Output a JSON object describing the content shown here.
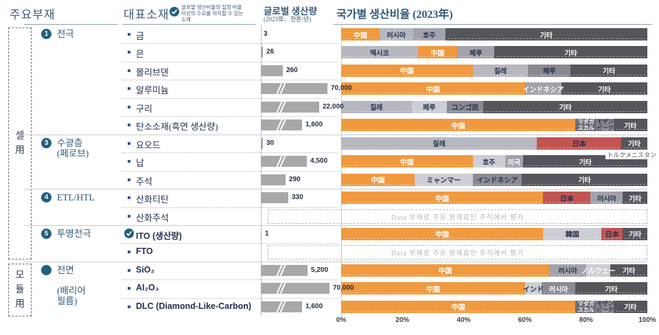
{
  "header": {
    "col1": "주요부재",
    "col2": "대표소재",
    "col2_note": "글로벌 생산비율의 일정 비율\n이상의 수요를 차지할 수 있는\n소재",
    "col3_line1": "글로벌 생산량",
    "col3_line2": "(2023年、천톤/년)",
    "col4": "국가별 생산비율 (2023年)"
  },
  "side_labels": [
    {
      "name": "cell-use",
      "chars": [
        "셀",
        "用"
      ]
    },
    {
      "name": "module-use",
      "chars": [
        "모",
        "듈",
        "用"
      ]
    }
  ],
  "groups": [
    {
      "num": "1",
      "lines": [
        "전극"
      ],
      "start_row": 0
    },
    {
      "num": "3",
      "lines": [
        "수광층",
        "(페로브)"
      ],
      "start_row": 6
    },
    {
      "num": "4",
      "lines": [
        "ETL/HTL"
      ],
      "start_row": 9
    },
    {
      "num": "5",
      "lines": [
        "투명전극"
      ],
      "start_row": 11
    },
    {
      "num": "",
      "lines": [
        "전면",
        " ",
        "(배리어",
        "필름)"
      ],
      "start_row": 13
    }
  ],
  "annotation": "トルクメニスタン",
  "colors": {
    "palette": {
      "cn": "#F0993E",
      "lg": "#B7B7C0",
      "xlg": "#CDCDD4",
      "mg": "#A2A2AB",
      "mg2": "#8A8A92",
      "dkm": "#6E6E76",
      "dk": "#55555C",
      "red": "#C05551"
    },
    "text": {
      "light": "#FFFFFF",
      "dark": "#26334D"
    },
    "bar_gray": "#A8A8A8",
    "accent_navy": "#215F80"
  },
  "chart_data": {
    "type": "bar",
    "stacked": true,
    "unit": "percent of global production by country",
    "x_axis_ticks": [
      "0%",
      "20%",
      "40%",
      "60%",
      "80%",
      "100%"
    ],
    "xlim": [
      0,
      100
    ],
    "no_data_text": "Data 부재로 주요 원재료인 주석에서 평가",
    "rows": [
      {
        "material": "금",
        "production": "3",
        "bar": 0,
        "brk": false,
        "segments": [
          {
            "label": "中国",
            "pct": 12.5,
            "bg": "cn",
            "fg": "light"
          },
          {
            "label": "러시아",
            "pct": 11,
            "bg": "lg",
            "fg": "dark"
          },
          {
            "label": "호주",
            "pct": 10.5,
            "bg": "mg",
            "fg": "dark"
          },
          {
            "label": "기타",
            "pct": 66,
            "bg": "dk",
            "fg": "light"
          }
        ]
      },
      {
        "material": "은",
        "production": "26",
        "bar": 3,
        "brk": false,
        "segments": [
          {
            "label": "멕시코",
            "pct": 25,
            "bg": "lg",
            "fg": "dark"
          },
          {
            "label": "中国",
            "pct": 13,
            "bg": "cn",
            "fg": "light"
          },
          {
            "label": "페루",
            "pct": 12,
            "bg": "mg",
            "fg": "dark"
          },
          {
            "label": "기타",
            "pct": 50,
            "bg": "dk",
            "fg": "light"
          }
        ]
      },
      {
        "material": "몰리브덴",
        "production": "260",
        "bar": 32,
        "brk": false,
        "segments": [
          {
            "label": "中国",
            "pct": 43,
            "bg": "cn",
            "fg": "light"
          },
          {
            "label": "칠레",
            "pct": 18,
            "bg": "lg",
            "fg": "dark"
          },
          {
            "label": "페루",
            "pct": 14,
            "bg": "mg2",
            "fg": "dark"
          },
          {
            "label": "기타",
            "pct": 25,
            "bg": "dk",
            "fg": "light"
          }
        ]
      },
      {
        "material": "알루미늄",
        "production": "70,000",
        "bar": 97,
        "brk": true,
        "segments": [
          {
            "label": "中国",
            "pct": 60,
            "bg": "cn",
            "fg": "light"
          },
          {
            "label": "インドネシア",
            "pct": 12,
            "bg": "mg",
            "fg": "light"
          },
          {
            "label": "기타",
            "pct": 28,
            "bg": "dk",
            "fg": "light"
          }
        ]
      },
      {
        "material": "구리",
        "production": "22,000",
        "bar": 85,
        "brk": true,
        "segments": [
          {
            "label": "칠레",
            "pct": 23,
            "bg": "lg",
            "fg": "dark"
          },
          {
            "label": "페루",
            "pct": 11.5,
            "bg": "xlg",
            "fg": "dark"
          },
          {
            "label": "コンゴ民",
            "pct": 12,
            "bg": "mg2",
            "fg": "dark"
          },
          {
            "label": "기타",
            "pct": 53.5,
            "bg": "dk",
            "fg": "light"
          }
        ]
      },
      {
        "material": "탄소소재(흑연 생산량)",
        "production": "1,600",
        "bar": 60,
        "brk": true,
        "segments": [
          {
            "label": "中国",
            "pct": 76.5,
            "bg": "cn",
            "fg": "light"
          },
          {
            "label": "マダガ\nスカル",
            "pct": 7,
            "bg": "dkm",
            "fg": "light",
            "size": 8
          },
          {
            "label": "モザン\nビーク",
            "pct": 5.5,
            "bg": "mg2",
            "fg": "dark",
            "size": 8
          },
          {
            "label": "기타",
            "pct": 11,
            "bg": "dk",
            "fg": "light"
          }
        ]
      },
      {
        "material": "요오드",
        "production": "30",
        "bar": 3,
        "brk": false,
        "segments": [
          {
            "label": "칠레",
            "pct": 64,
            "bg": "lg",
            "fg": "dark"
          },
          {
            "label": "日本",
            "pct": 27.5,
            "bg": "red",
            "fg": "dark"
          },
          {
            "label": "기타",
            "pct": 8.5,
            "bg": "dk",
            "fg": "light"
          }
        ]
      },
      {
        "material": "납",
        "production": "4,500",
        "bar": 67,
        "brk": true,
        "segments": [
          {
            "label": "中国",
            "pct": 43,
            "bg": "cn",
            "fg": "light"
          },
          {
            "label": "호주",
            "pct": 10.5,
            "bg": "xlg",
            "fg": "dark"
          },
          {
            "label": "미국",
            "pct": 6,
            "bg": "mg",
            "fg": "light"
          },
          {
            "label": "기타",
            "pct": 40.5,
            "bg": "dk",
            "fg": "light"
          }
        ]
      },
      {
        "material": "주석",
        "production": "290",
        "bar": 36,
        "brk": false,
        "segments": [
          {
            "label": "中国",
            "pct": 24,
            "bg": "cn",
            "fg": "light"
          },
          {
            "label": "ミャンマー",
            "pct": 19,
            "bg": "xlg",
            "fg": "dark"
          },
          {
            "label": "インドネシア",
            "pct": 16,
            "bg": "mg2",
            "fg": "dark"
          },
          {
            "label": "기타",
            "pct": 41,
            "bg": "dk",
            "fg": "light"
          }
        ]
      },
      {
        "material": "산화티탄",
        "production": "330",
        "bar": 40,
        "brk": false,
        "segments": [
          {
            "label": "中国",
            "pct": 66,
            "bg": "cn",
            "fg": "light"
          },
          {
            "label": "日本",
            "pct": 15.5,
            "bg": "red",
            "fg": "dark"
          },
          {
            "label": "러시아",
            "pct": 10.5,
            "bg": "mg",
            "fg": "dark"
          },
          {
            "label": "기타",
            "pct": 8,
            "bg": "dk",
            "fg": "light"
          }
        ]
      },
      {
        "material": "산화주석",
        "nodata": true
      },
      {
        "material": "ITO (생산량)",
        "latin": true,
        "icon": "check",
        "production": "1",
        "bar": 1,
        "brk": false,
        "segments": [
          {
            "label": "中国",
            "pct": 66,
            "bg": "cn",
            "fg": "light"
          },
          {
            "label": "韓国",
            "pct": 19,
            "bg": "xlg",
            "fg": "dark"
          },
          {
            "label": "日本",
            "pct": 7,
            "bg": "red",
            "fg": "dark"
          },
          {
            "label": "기타",
            "pct": 8,
            "bg": "dk",
            "fg": "light"
          }
        ]
      },
      {
        "material": "FTO",
        "latin": true,
        "nodata": true
      },
      {
        "material": "SiO₂",
        "latin": true,
        "production": "5,200",
        "bar": 68,
        "brk": true,
        "segments": [
          {
            "label": "中国",
            "pct": 68,
            "bg": "cn",
            "fg": "light"
          },
          {
            "label": "러시아",
            "pct": 12,
            "bg": "mg",
            "fg": "dark"
          },
          {
            "label": "ノルウェー",
            "pct": 8,
            "bg": "xlg",
            "fg": "light"
          },
          {
            "label": "기타",
            "pct": 12,
            "bg": "dk",
            "fg": "light"
          }
        ]
      },
      {
        "material": "Al₂O₃",
        "latin": true,
        "production": "70,000",
        "bar": 100,
        "brk": true,
        "segments": [
          {
            "label": "中国",
            "pct": 60,
            "bg": "cn",
            "fg": "light"
          },
          {
            "label": "インド",
            "pct": 5.5,
            "bg": "xlg",
            "fg": "dark"
          },
          {
            "label": "러시아",
            "pct": 11,
            "bg": "mg2",
            "fg": "light"
          },
          {
            "label": "기타",
            "pct": 23.5,
            "bg": "dk",
            "fg": "light"
          }
        ]
      },
      {
        "material": "DLC (Diamond-Like-Carbon)",
        "latin": true,
        "production": "1,600",
        "bar": 60,
        "brk": true,
        "segments": [
          {
            "label": "中国",
            "pct": 76.5,
            "bg": "cn",
            "fg": "light"
          },
          {
            "label": "マダガ\nスカル",
            "pct": 7,
            "bg": "dkm",
            "fg": "light",
            "size": 8
          },
          {
            "label": "モザン\nビーク",
            "pct": 5.5,
            "bg": "mg2",
            "fg": "dark",
            "size": 8
          },
          {
            "label": "기타",
            "pct": 11,
            "bg": "dk",
            "fg": "light"
          }
        ]
      }
    ]
  }
}
